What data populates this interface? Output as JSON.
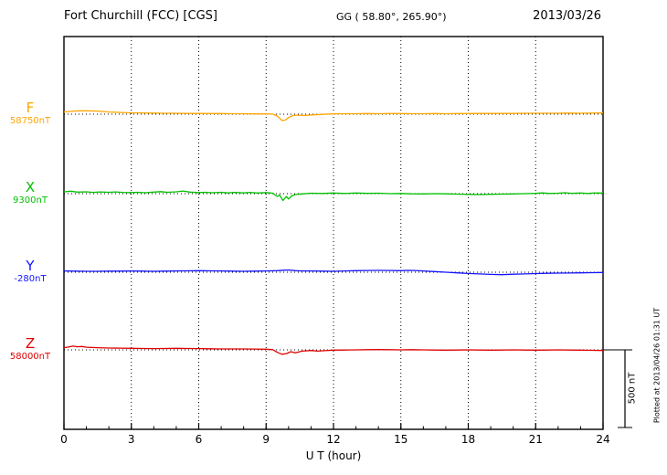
{
  "header": {
    "station": "Fort Churchill (FCC)  [CGS]",
    "coords": "GG ( 58.80°, 265.90°)",
    "date": "2013/03/26"
  },
  "axis": {
    "xlabel": "U T (hour)",
    "xmin": 0,
    "xmax": 24,
    "ticks": [
      0,
      3,
      6,
      9,
      12,
      15,
      18,
      21,
      24
    ]
  },
  "scale_bar": {
    "label": "500 nT",
    "nT": 500
  },
  "footer_note": "Plotted at 2013/04/26 01:31 UT",
  "chart_data": {
    "type": "line",
    "title": "Fort Churchill (FCC) [CGS] magnetogram 2013/03/26",
    "xlabel": "U T (hour)",
    "x_range": [
      0,
      24
    ],
    "x_ticks": [
      0,
      3,
      6,
      9,
      12,
      15,
      18,
      21,
      24
    ],
    "grid": "dotted-vertical",
    "scale_nT": 500,
    "series": [
      {
        "name": "F",
        "baseline_label": "58750nT",
        "baseline_nT": 58750,
        "color": "#FFA500",
        "points_hour_offsetnT": [
          [
            0,
            14
          ],
          [
            0.3,
            18
          ],
          [
            0.7,
            22
          ],
          [
            1,
            22
          ],
          [
            1.5,
            20
          ],
          [
            2,
            14
          ],
          [
            2.5,
            11
          ],
          [
            3,
            9
          ],
          [
            3.5,
            8
          ],
          [
            4,
            7
          ],
          [
            4.5,
            6
          ],
          [
            5,
            6
          ],
          [
            5.5,
            5
          ],
          [
            6,
            5
          ],
          [
            6.5,
            4
          ],
          [
            7,
            4
          ],
          [
            7.5,
            3
          ],
          [
            8,
            3
          ],
          [
            8.5,
            2
          ],
          [
            9,
            2
          ],
          [
            9.3,
            0
          ],
          [
            9.5,
            -12
          ],
          [
            9.7,
            -40
          ],
          [
            9.85,
            -38
          ],
          [
            10,
            -22
          ],
          [
            10.2,
            -8
          ],
          [
            10.4,
            -6
          ],
          [
            10.7,
            -9
          ],
          [
            11,
            -5
          ],
          [
            11.5,
            -1
          ],
          [
            12,
            2
          ],
          [
            12.5,
            3
          ],
          [
            13,
            3
          ],
          [
            13.5,
            4
          ],
          [
            14,
            3
          ],
          [
            14.5,
            4
          ],
          [
            15,
            4
          ],
          [
            15.5,
            3
          ],
          [
            16,
            3
          ],
          [
            16.5,
            4
          ],
          [
            17,
            3
          ],
          [
            17.5,
            4
          ],
          [
            18,
            4
          ],
          [
            18.5,
            5
          ],
          [
            19,
            5
          ],
          [
            19.5,
            5
          ],
          [
            20,
            5
          ],
          [
            20.5,
            6
          ],
          [
            21,
            6
          ],
          [
            21.5,
            6
          ],
          [
            22,
            6
          ],
          [
            22.5,
            7
          ],
          [
            23,
            6
          ],
          [
            23.5,
            7
          ],
          [
            24,
            8
          ]
        ]
      },
      {
        "name": "X",
        "baseline_label": "9300nT",
        "baseline_nT": 9300,
        "color": "#00C000",
        "points_hour_offsetnT": [
          [
            0,
            12
          ],
          [
            0.3,
            16
          ],
          [
            0.6,
            10
          ],
          [
            1,
            12
          ],
          [
            1.3,
            8
          ],
          [
            1.6,
            11
          ],
          [
            2,
            9
          ],
          [
            2.3,
            11
          ],
          [
            2.6,
            8
          ],
          [
            3,
            7
          ],
          [
            3.3,
            9
          ],
          [
            3.6,
            6
          ],
          [
            4,
            10
          ],
          [
            4.3,
            13
          ],
          [
            4.6,
            9
          ],
          [
            5,
            12
          ],
          [
            5.3,
            17
          ],
          [
            5.6,
            10
          ],
          [
            6,
            7
          ],
          [
            6.3,
            9
          ],
          [
            6.6,
            6
          ],
          [
            7,
            9
          ],
          [
            7.3,
            5
          ],
          [
            7.6,
            8
          ],
          [
            8,
            5
          ],
          [
            8.3,
            8
          ],
          [
            8.6,
            4
          ],
          [
            9,
            7
          ],
          [
            9.3,
            3
          ],
          [
            9.5,
            -18
          ],
          [
            9.6,
            -8
          ],
          [
            9.75,
            -44
          ],
          [
            9.9,
            -18
          ],
          [
            10,
            -34
          ],
          [
            10.15,
            -14
          ],
          [
            10.3,
            -6
          ],
          [
            10.6,
            -2
          ],
          [
            11,
            3
          ],
          [
            11.5,
            1
          ],
          [
            12,
            4
          ],
          [
            12.5,
            1
          ],
          [
            13,
            4
          ],
          [
            13.5,
            2
          ],
          [
            14,
            3
          ],
          [
            14.5,
            0
          ],
          [
            15,
            1
          ],
          [
            15.5,
            -1
          ],
          [
            16,
            -2
          ],
          [
            16.5,
            0
          ],
          [
            17,
            -1
          ],
          [
            17.5,
            -3
          ],
          [
            18,
            -5
          ],
          [
            18.5,
            -6
          ],
          [
            19,
            -4
          ],
          [
            19.5,
            -3
          ],
          [
            20,
            -2
          ],
          [
            20.5,
            0
          ],
          [
            21,
            2
          ],
          [
            21.3,
            5
          ],
          [
            21.6,
            1
          ],
          [
            22,
            3
          ],
          [
            22.3,
            6
          ],
          [
            22.6,
            2
          ],
          [
            23,
            4
          ],
          [
            23.3,
            1
          ],
          [
            23.6,
            4
          ],
          [
            24,
            4
          ]
        ]
      },
      {
        "name": "Y",
        "baseline_label": "-280nT",
        "baseline_nT": -280,
        "color": "#1414FF",
        "points_hour_offsetnT": [
          [
            0,
            8
          ],
          [
            0.5,
            7
          ],
          [
            1,
            6
          ],
          [
            1.5,
            6
          ],
          [
            2,
            7
          ],
          [
            2.5,
            7
          ],
          [
            3,
            8
          ],
          [
            3.5,
            7
          ],
          [
            4,
            6
          ],
          [
            4.5,
            7
          ],
          [
            5,
            8
          ],
          [
            5.5,
            9
          ],
          [
            6,
            10
          ],
          [
            6.5,
            9
          ],
          [
            7,
            8
          ],
          [
            7.5,
            7
          ],
          [
            8,
            6
          ],
          [
            8.5,
            7
          ],
          [
            9,
            8
          ],
          [
            9.5,
            10
          ],
          [
            9.8,
            13
          ],
          [
            10,
            14
          ],
          [
            10.3,
            10
          ],
          [
            10.6,
            8
          ],
          [
            11,
            8
          ],
          [
            11.5,
            7
          ],
          [
            12,
            6
          ],
          [
            12.5,
            8
          ],
          [
            13,
            10
          ],
          [
            13.5,
            11
          ],
          [
            14,
            12
          ],
          [
            14.5,
            11
          ],
          [
            15,
            10
          ],
          [
            15.3,
            12
          ],
          [
            15.6,
            11
          ],
          [
            16,
            8
          ],
          [
            16.5,
            4
          ],
          [
            17,
            0
          ],
          [
            17.5,
            -4
          ],
          [
            18,
            -8
          ],
          [
            18.5,
            -11
          ],
          [
            19,
            -14
          ],
          [
            19.5,
            -16
          ],
          [
            20,
            -13
          ],
          [
            20.5,
            -11
          ],
          [
            21,
            -9
          ],
          [
            21.5,
            -7
          ],
          [
            22,
            -6
          ],
          [
            22.5,
            -5
          ],
          [
            23,
            -4
          ],
          [
            23.5,
            -3
          ],
          [
            24,
            -2
          ]
        ]
      },
      {
        "name": "Z",
        "baseline_label": "58000nT",
        "baseline_nT": 58000,
        "color": "#E00000",
        "points_hour_offsetnT": [
          [
            0,
            14
          ],
          [
            0.2,
            18
          ],
          [
            0.4,
            24
          ],
          [
            0.6,
            20
          ],
          [
            0.8,
            22
          ],
          [
            1,
            17
          ],
          [
            1.5,
            14
          ],
          [
            2,
            12
          ],
          [
            2.5,
            11
          ],
          [
            3,
            10
          ],
          [
            3.5,
            9
          ],
          [
            4,
            8
          ],
          [
            4.5,
            9
          ],
          [
            5,
            10
          ],
          [
            5.5,
            9
          ],
          [
            6,
            8
          ],
          [
            6.5,
            7
          ],
          [
            7,
            6
          ],
          [
            7.5,
            6
          ],
          [
            8,
            6
          ],
          [
            8.5,
            5
          ],
          [
            9,
            4
          ],
          [
            9.3,
            1
          ],
          [
            9.5,
            -16
          ],
          [
            9.7,
            -28
          ],
          [
            9.9,
            -24
          ],
          [
            10.1,
            -12
          ],
          [
            10.3,
            -19
          ],
          [
            10.6,
            -8
          ],
          [
            11,
            -4
          ],
          [
            11.3,
            -8
          ],
          [
            11.6,
            -5
          ],
          [
            12,
            -2
          ],
          [
            12.5,
            -1
          ],
          [
            13,
            0
          ],
          [
            13.5,
            1
          ],
          [
            14,
            2
          ],
          [
            14.5,
            1
          ],
          [
            15,
            0
          ],
          [
            15.5,
            1
          ],
          [
            16,
            0
          ],
          [
            16.5,
            -1
          ],
          [
            17,
            -2
          ],
          [
            17.5,
            -1
          ],
          [
            18,
            0
          ],
          [
            18.5,
            -1
          ],
          [
            19,
            -2
          ],
          [
            19.5,
            -1
          ],
          [
            20,
            0
          ],
          [
            20.5,
            -1
          ],
          [
            21,
            -2
          ],
          [
            21.5,
            -1
          ],
          [
            22,
            0
          ],
          [
            22.5,
            -1
          ],
          [
            23,
            -2
          ],
          [
            23.5,
            -3
          ],
          [
            24,
            -4
          ]
        ]
      }
    ]
  }
}
